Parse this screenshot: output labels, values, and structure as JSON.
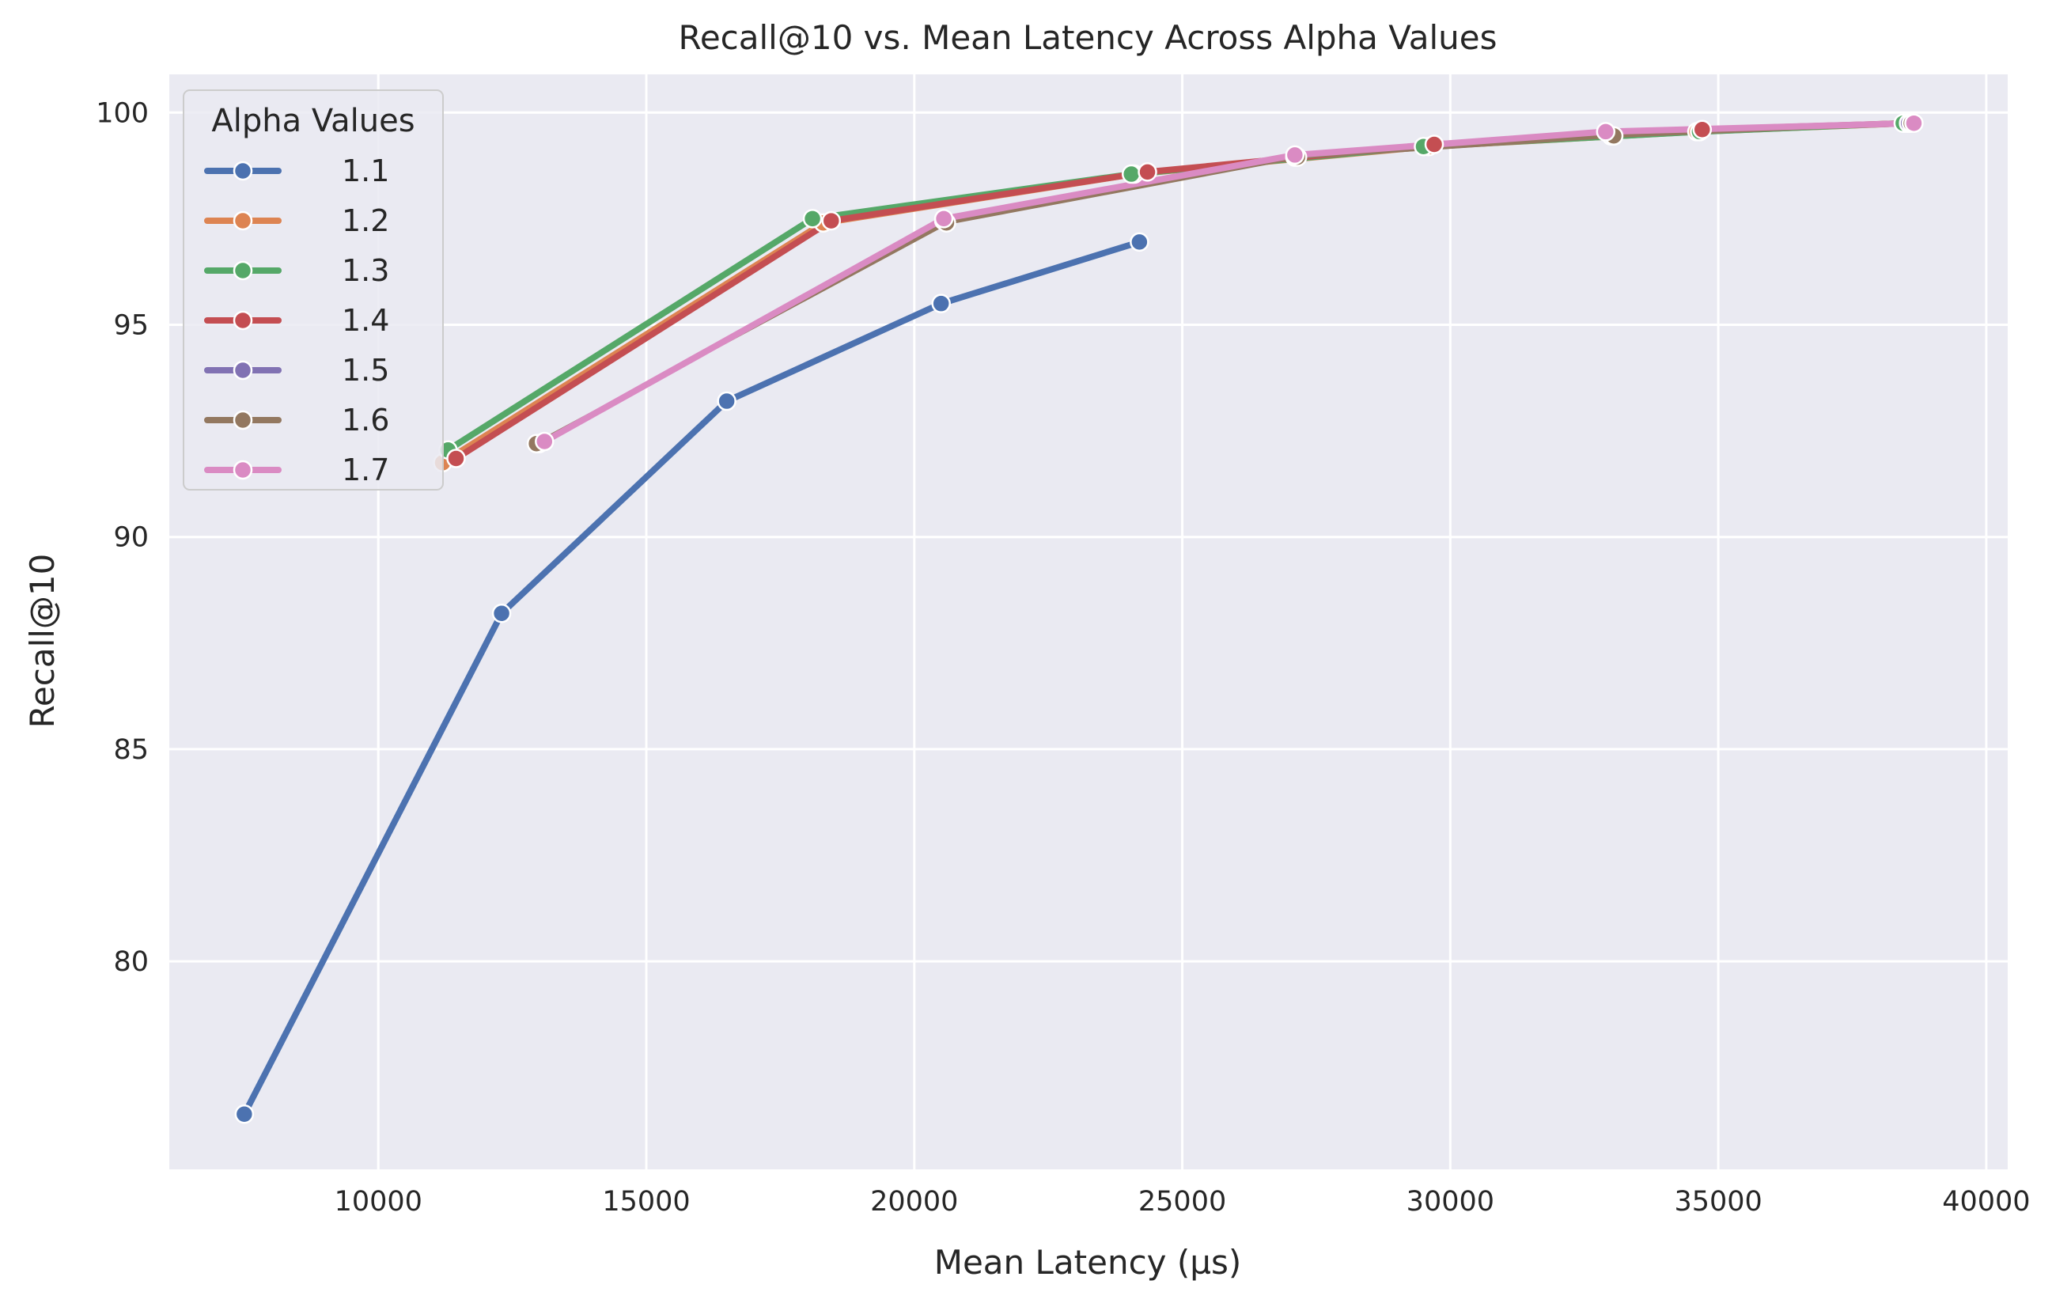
{
  "chart_data": {
    "type": "line",
    "title": "Recall@10 vs. Mean Latency Across Alpha Values",
    "xlabel": "Mean Latency (µs)",
    "ylabel": "Recall@10",
    "xlim": [
      6100,
      40400
    ],
    "ylim": [
      75.1,
      100.9
    ],
    "xticks": [
      10000,
      15000,
      20000,
      25000,
      30000,
      35000,
      40000
    ],
    "yticks": [
      80,
      85,
      90,
      95,
      100
    ],
    "grid": true,
    "legend": {
      "title": "Alpha Values",
      "position": "top-left"
    },
    "series": [
      {
        "name": "1.1",
        "color": "#4C72B0",
        "width": 8,
        "x": [
          7500,
          12300,
          16500,
          20500,
          24200
        ],
        "y": [
          76.4,
          88.2,
          93.2,
          95.5,
          96.95
        ]
      },
      {
        "name": "1.2",
        "color": "#DD8452",
        "width": 8,
        "x": [
          11200,
          18300,
          24100,
          29600,
          34600,
          38500
        ],
        "y": [
          91.75,
          97.4,
          98.55,
          99.2,
          99.55,
          99.75
        ]
      },
      {
        "name": "1.3",
        "color": "#55A868",
        "width": 8,
        "x": [
          11300,
          18100,
          24050,
          29500,
          34650,
          38450
        ],
        "y": [
          92.05,
          97.5,
          98.55,
          99.2,
          99.55,
          99.75
        ]
      },
      {
        "name": "1.4",
        "color": "#C44E52",
        "width": 8,
        "x": [
          11450,
          18450,
          24350,
          29700,
          34700,
          38550
        ],
        "y": [
          91.85,
          97.45,
          98.6,
          99.25,
          99.6,
          99.75
        ]
      },
      {
        "name": "1.5",
        "color": "#8172B3",
        "width": 5,
        "x": [
          13000,
          20550,
          27100,
          33000,
          38550
        ],
        "y": [
          92.2,
          97.45,
          98.95,
          99.45,
          99.75
        ]
      },
      {
        "name": "1.6",
        "color": "#937860",
        "width": 5,
        "x": [
          12950,
          20600,
          27150,
          33050,
          38600
        ],
        "y": [
          92.2,
          97.4,
          98.95,
          99.45,
          99.75
        ]
      },
      {
        "name": "1.7",
        "color": "#DA8BC3",
        "width": 8,
        "x": [
          13100,
          20550,
          27100,
          32900,
          38650
        ],
        "y": [
          92.25,
          97.5,
          99.0,
          99.55,
          99.75
        ]
      }
    ]
  },
  "colors": {
    "plot_background": "#EAEAF2",
    "grid": "#FFFFFF",
    "text": "#262626"
  }
}
